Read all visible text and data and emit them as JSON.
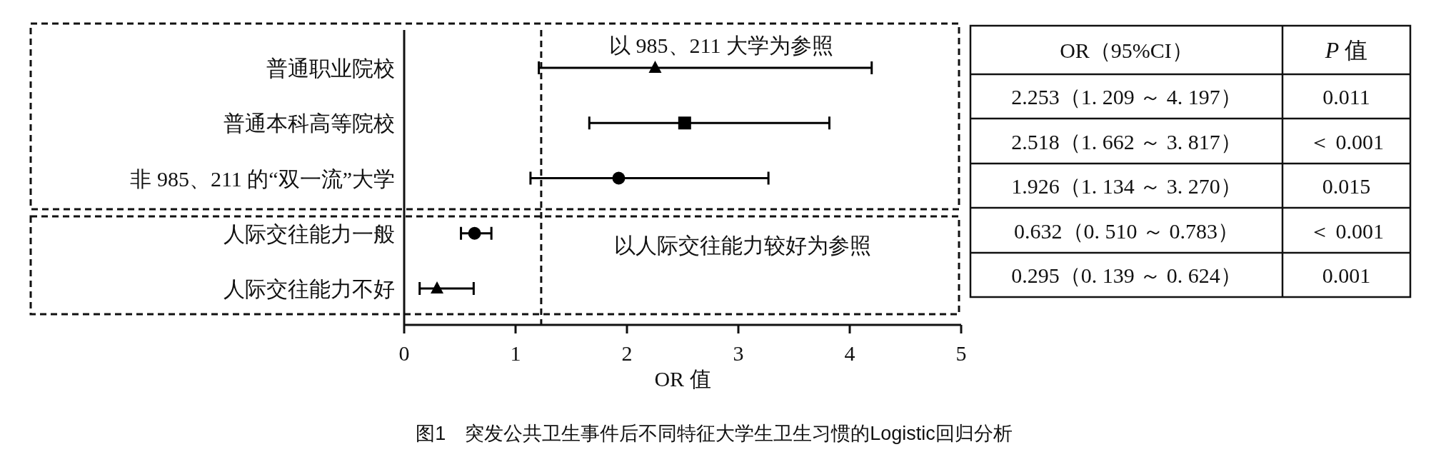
{
  "chart_data": {
    "type": "scatter",
    "orientation": "horizontal",
    "title": "图1　突发公共卫生事件后不同特征大学生卫生习惯的Logistic回归分析",
    "xlabel": "OR 值",
    "categories": [
      "普通职业院校",
      "普通本科高等院校",
      "非 985、211 的“双一流”大学",
      "人际交往能力一般",
      "人际交往能力不好"
    ],
    "xlim": [
      0,
      5
    ],
    "xticks": [
      0,
      1,
      2,
      3,
      4,
      5
    ],
    "series": [
      {
        "marker": "triangle",
        "color": "#000000",
        "values": [
          2.253,
          null,
          null,
          null,
          0.295
        ],
        "errors": [
          [
            1.209,
            4.197
          ],
          null,
          null,
          null,
          [
            0.139,
            0.624
          ]
        ]
      },
      {
        "marker": "square",
        "color": "#000000",
        "values": [
          null,
          2.518,
          null,
          null,
          null
        ],
        "errors": [
          null,
          [
            1.662,
            3.817
          ],
          null,
          null,
          null
        ]
      },
      {
        "marker": "circle",
        "color": "#000000",
        "values": [
          null,
          null,
          1.926,
          0.632,
          null
        ],
        "errors": [
          null,
          null,
          [
            1.134,
            3.27
          ],
          [
            0.51,
            0.783
          ],
          null
        ]
      }
    ],
    "ref_lines": [
      {
        "axis": "x",
        "value": 1.23,
        "line_style": "dashed"
      }
    ],
    "annotations": [
      "以 985、211 大学为参照",
      "以人际交往能力较好为参照",
      "OR（95%CI）",
      "*P* 值",
      "2.253（1. 209 ～ 4. 197）",
      "0.011",
      "2.518（1. 662 ～ 3. 817）",
      "＜ 0.001",
      "1.926（1. 134 ～ 3. 270）",
      "0.015",
      "0.632（0. 510 ～ 0.783）",
      "＜ 0.001",
      "0.295（0. 139 ～ 0. 624）",
      "0.001"
    ]
  }
}
